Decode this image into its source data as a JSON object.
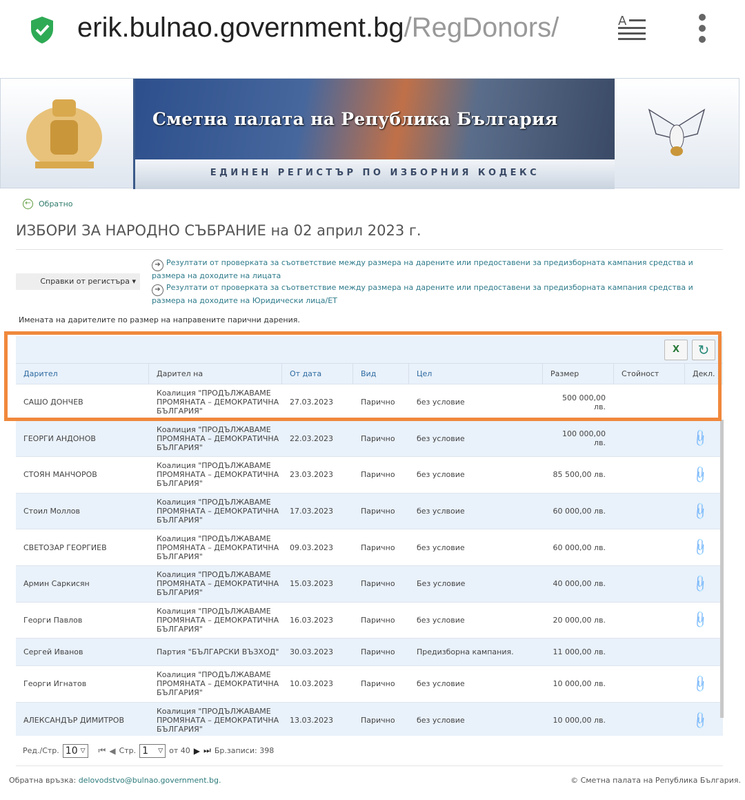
{
  "browser": {
    "url_host": "erik.bulnao.government.bg",
    "url_path": "/RegDonors/",
    "secure_icon": "shield-check-icon"
  },
  "banner": {
    "title": "Сметна палата на Република България",
    "subtitle": "ЕДИНЕН РЕГИСТЪР ПО ИЗБОРНИЯ КОДЕКС",
    "home_icon": "⌂"
  },
  "page": {
    "back": "Обратно",
    "title": "ИЗБОРИ ЗА НАРОДНО СЪБРАНИЕ на 02 април 2023 г.",
    "reports_dropdown": "Справки от регистъра ▾",
    "links": [
      "Резултати от проверката за съответствие между размера на дарените или предоставени за предизборната кампания средства и размера на доходите на лицата",
      "Резултати от проверката за съответствие между размера на дарените или предоставени за предизборната кампания средства и размера на доходите на Юридически лица/ЕТ"
    ],
    "caption": "Имената на дарителите по размер на направените парични дарения."
  },
  "table": {
    "columns": [
      "Дарител",
      "Дарител на",
      "От дата",
      "Вид",
      "Цел",
      "Размер",
      "Стойност",
      "Декл."
    ],
    "rows": [
      {
        "donor": "САШО ДОНЧЕВ",
        "to": "Коалиция \"ПРОДЪЛЖАВАМЕ ПРОМЯНАТА – ДЕМОКРАТИЧНА БЪЛГАРИЯ\"",
        "date": "27.03.2023",
        "type": "Парично",
        "purpose": "без условие",
        "amount": "500 000,00 лв.",
        "value": "",
        "decl": false
      },
      {
        "donor": "ГЕОРГИ АНДОНОВ",
        "to": "Коалиция \"ПРОДЪЛЖАВАМЕ ПРОМЯНАТА – ДЕМОКРАТИЧНА БЪЛГАРИЯ\"",
        "date": "22.03.2023",
        "type": "Парично",
        "purpose": "без условие",
        "amount": "100 000,00 лв.",
        "value": "",
        "decl": true
      },
      {
        "donor": "СТОЯН МАНЧОРОВ",
        "to": "Коалиция \"ПРОДЪЛЖАВАМЕ ПРОМЯНАТА – ДЕМОКРАТИЧНА БЪЛГАРИЯ\"",
        "date": "23.03.2023",
        "type": "Парично",
        "purpose": "без условие",
        "amount": "85 500,00 лв.",
        "value": "",
        "decl": true
      },
      {
        "donor": "Стоил Моллов",
        "to": "Коалиция \"ПРОДЪЛЖАВАМЕ ПРОМЯНАТА – ДЕМОКРАТИЧНА БЪЛГАРИЯ\"",
        "date": "17.03.2023",
        "type": "Парично",
        "purpose": "без услвоие",
        "amount": "60 000,00 лв.",
        "value": "",
        "decl": true
      },
      {
        "donor": "СВЕТОЗАР ГЕОРГИЕВ",
        "to": "Коалиция \"ПРОДЪЛЖАВАМЕ ПРОМЯНАТА – ДЕМОКРАТИЧНА БЪЛГАРИЯ\"",
        "date": "09.03.2023",
        "type": "Парично",
        "purpose": "без условие",
        "amount": "60 000,00 лв.",
        "value": "",
        "decl": true
      },
      {
        "donor": "Армин Саркисян",
        "to": "Коалиция \"ПРОДЪЛЖАВАМЕ ПРОМЯНАТА – ДЕМОКРАТИЧНА БЪЛГАРИЯ\"",
        "date": "15.03.2023",
        "type": "Парично",
        "purpose": "Без условие",
        "amount": "40 000,00 лв.",
        "value": "",
        "decl": true
      },
      {
        "donor": "Георги Павлов",
        "to": "Коалиция \"ПРОДЪЛЖАВАМЕ ПРОМЯНАТА – ДЕМОКРАТИЧНА БЪЛГАРИЯ\"",
        "date": "16.03.2023",
        "type": "Парично",
        "purpose": "без условие",
        "amount": "20 000,00 лв.",
        "value": "",
        "decl": true
      },
      {
        "donor": "Сергей Иванов",
        "to": "Партия \"БЪЛГАРСКИ ВЪЗХОД\"",
        "date": "30.03.2023",
        "type": "Парично",
        "purpose": "Предизборна кампания.",
        "amount": "11 000,00 лв.",
        "value": "",
        "decl": false
      },
      {
        "donor": "Георги Игнатов",
        "to": "Коалиция \"ПРОДЪЛЖАВАМЕ ПРОМЯНАТА – ДЕМОКРАТИЧНА БЪЛГАРИЯ\"",
        "date": "10.03.2023",
        "type": "Парично",
        "purpose": "без условие",
        "amount": "10 000,00 лв.",
        "value": "",
        "decl": true
      },
      {
        "donor": "АЛЕКСАНДЪР ДИМИТРОВ",
        "to": "Коалиция \"ПРОДЪЛЖАВАМЕ ПРОМЯНАТА – ДЕМОКРАТИЧНА БЪЛГАРИЯ\"",
        "date": "13.03.2023",
        "type": "Парично",
        "purpose": "без условие",
        "amount": "10 000,00 лв.",
        "value": "",
        "decl": true
      }
    ]
  },
  "pager": {
    "rows_label": "Ред./Стр.",
    "rows_value": "10",
    "page_label": "Стр.",
    "page_value": "1",
    "of_label": "от 40",
    "records": "Бр.записи: 398"
  },
  "footer": {
    "feedback_label": "Обратна връзка:",
    "email": "delovodstvo@bulnao.government.bg.",
    "copyright": "© Сметна палата на Република България."
  },
  "colors": {
    "highlight": "#f0883c",
    "link": "#2d7a8a",
    "header_bg": "#e9f1fa"
  }
}
